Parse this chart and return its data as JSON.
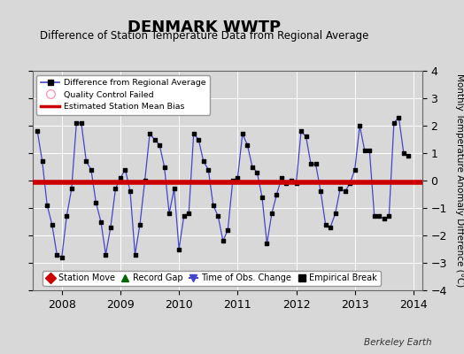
{
  "title": "DENMARK WWTP",
  "subtitle": "Difference of Station Temperature Data from Regional Average",
  "ylabel": "Monthly Temperature Anomaly Difference (°C)",
  "ylim": [
    -4,
    4
  ],
  "xlim": [
    2007.5,
    2014.15
  ],
  "bias_value": -0.07,
  "background_color": "#d8d8d8",
  "plot_bg_color": "#d8d8d8",
  "line_color": "#4444cc",
  "dot_color": "#000000",
  "bias_color": "#cc0000",
  "title_fontsize": 13,
  "subtitle_fontsize": 9,
  "watermark": "Berkeley Earth",
  "xticks": [
    2008,
    2009,
    2010,
    2011,
    2012,
    2013,
    2014
  ],
  "yticks": [
    -4,
    -3,
    -2,
    -1,
    0,
    1,
    2,
    3,
    4
  ],
  "data_x": [
    2007.583,
    2007.667,
    2007.75,
    2007.833,
    2007.917,
    2008.0,
    2008.083,
    2008.167,
    2008.25,
    2008.333,
    2008.417,
    2008.5,
    2008.583,
    2008.667,
    2008.75,
    2008.833,
    2008.917,
    2009.0,
    2009.083,
    2009.167,
    2009.25,
    2009.333,
    2009.417,
    2009.5,
    2009.583,
    2009.667,
    2009.75,
    2009.833,
    2009.917,
    2010.0,
    2010.083,
    2010.167,
    2010.25,
    2010.333,
    2010.417,
    2010.5,
    2010.583,
    2010.667,
    2010.75,
    2010.833,
    2010.917,
    2011.0,
    2011.083,
    2011.167,
    2011.25,
    2011.333,
    2011.417,
    2011.5,
    2011.583,
    2011.667,
    2011.75,
    2011.833,
    2011.917,
    2012.0,
    2012.083,
    2012.167,
    2012.25,
    2012.333,
    2012.417,
    2012.5,
    2012.583,
    2012.667,
    2012.75,
    2012.833,
    2012.917,
    2013.0,
    2013.083,
    2013.167,
    2013.25,
    2013.333,
    2013.417,
    2013.5,
    2013.583,
    2013.667,
    2013.75,
    2013.833,
    2013.917
  ],
  "data_y": [
    1.8,
    0.7,
    -0.9,
    -1.6,
    -2.7,
    -2.8,
    -1.3,
    -0.3,
    2.1,
    2.1,
    0.7,
    0.4,
    -0.8,
    -1.5,
    -2.7,
    -1.7,
    -0.3,
    0.1,
    0.4,
    -0.4,
    -2.7,
    -1.6,
    0.0,
    1.7,
    1.5,
    1.3,
    0.5,
    -1.2,
    -0.3,
    -2.5,
    -1.3,
    -1.2,
    1.7,
    1.5,
    0.7,
    0.4,
    -0.9,
    -1.3,
    -2.2,
    -1.8,
    0.0,
    0.1,
    1.7,
    1.3,
    0.5,
    0.3,
    -0.6,
    -2.3,
    -1.2,
    -0.5,
    0.1,
    -0.1,
    0.0,
    -0.1,
    1.8,
    1.6,
    0.6,
    0.6,
    -0.4,
    -1.6,
    -1.7,
    -1.2,
    -0.3,
    -0.4,
    -0.1,
    0.4,
    2.0,
    1.1,
    1.1,
    -1.3,
    -1.3,
    -1.4,
    -1.3,
    2.1,
    2.3,
    1.0,
    0.9
  ]
}
